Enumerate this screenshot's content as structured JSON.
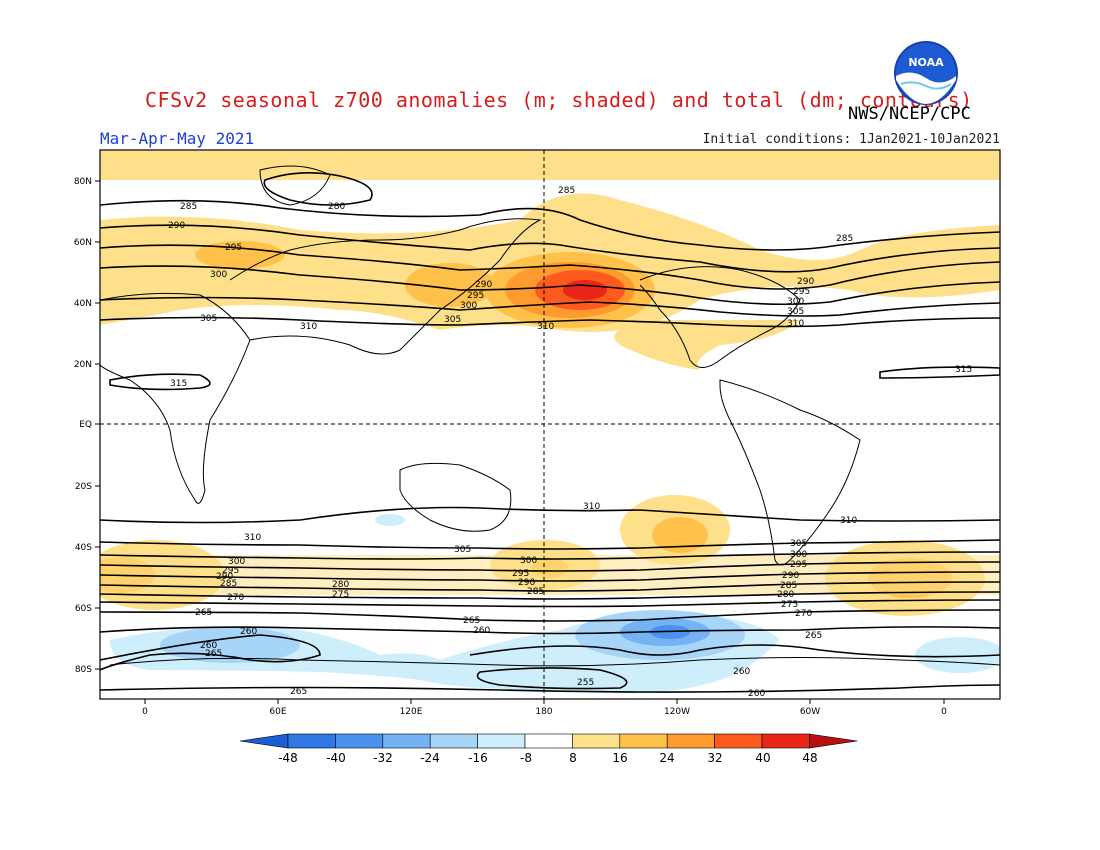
{
  "header": {
    "title": "CFSv2 seasonal z700 anomalies (m; shaded) and total (dm; contours)",
    "agency": "NWS/NCEP/CPC",
    "season": "Mar-Apr-May 2021",
    "initial_conditions": "Initial conditions: 1Jan2021-10Jan2021",
    "logo_text": "NOAA"
  },
  "map": {
    "lat_labels": [
      "80N",
      "60N",
      "40N",
      "20N",
      "EQ",
      "20S",
      "40S",
      "60S",
      "80S"
    ],
    "lon_labels": [
      "0",
      "60E",
      "120E",
      "180",
      "120W",
      "60W",
      "0"
    ],
    "contour_labels": {
      "nh": [
        "280",
        "285",
        "290",
        "295",
        "300",
        "305",
        "310",
        "315"
      ],
      "sh": [
        "310",
        "305",
        "300",
        "295",
        "290",
        "285",
        "280",
        "275",
        "270",
        "265",
        "260",
        "255"
      ]
    }
  },
  "colorbar": {
    "ticks": [
      "-48",
      "-40",
      "-32",
      "-24",
      "-16",
      "-8",
      "8",
      "16",
      "24",
      "32",
      "40",
      "48"
    ],
    "colors": [
      "#1a5fd8",
      "#2f78e6",
      "#4a92ee",
      "#74b2f4",
      "#a6d5f8",
      "#cdeefa",
      "#ffffff",
      "#ffe08a",
      "#ffc14a",
      "#ff9a2e",
      "#ff5a1e",
      "#e8261a",
      "#b81010"
    ]
  },
  "chart_data": {
    "type": "heatmap",
    "title": "CFSv2 seasonal z700 anomalies (m; shaded) and total (dm; contours)",
    "variable": "700 hPa geopotential height",
    "period": "Mar-Apr-May 2021",
    "shaded_units": "m",
    "contour_units": "dm",
    "shading_levels": [
      -48,
      -40,
      -32,
      -24,
      -16,
      -8,
      8,
      16,
      24,
      32,
      40,
      48
    ],
    "contour_levels_nh": [
      280,
      285,
      290,
      295,
      300,
      305,
      310,
      315
    ],
    "contour_levels_sh": [
      310,
      305,
      300,
      295,
      290,
      285,
      280,
      275,
      270,
      265,
      260,
      255
    ],
    "lon_range": [
      "0",
      "0"
    ],
    "lat_range": [
      "80S",
      "80N"
    ],
    "anomaly_features": [
      {
        "region": "North Pacific",
        "lat": "40N",
        "lon": "160W",
        "anomaly_m": 40
      },
      {
        "region": "Eurasia mid-latitudes",
        "lat": "55N",
        "lon": "60E",
        "anomaly_m": 16
      },
      {
        "region": "South Atlantic",
        "lat": "45S",
        "lon": "20W",
        "anomaly_m": 24
      },
      {
        "region": "South Pacific",
        "lat": "35S",
        "lon": "140W",
        "anomaly_m": 24
      },
      {
        "region": "Southern Ocean (Pacific sector)",
        "lat": "70S",
        "lon": "120W",
        "anomaly_m": -32
      },
      {
        "region": "Antarctic (Indian sector)",
        "lat": "75S",
        "lon": "60E",
        "anomaly_m": -16
      }
    ]
  }
}
